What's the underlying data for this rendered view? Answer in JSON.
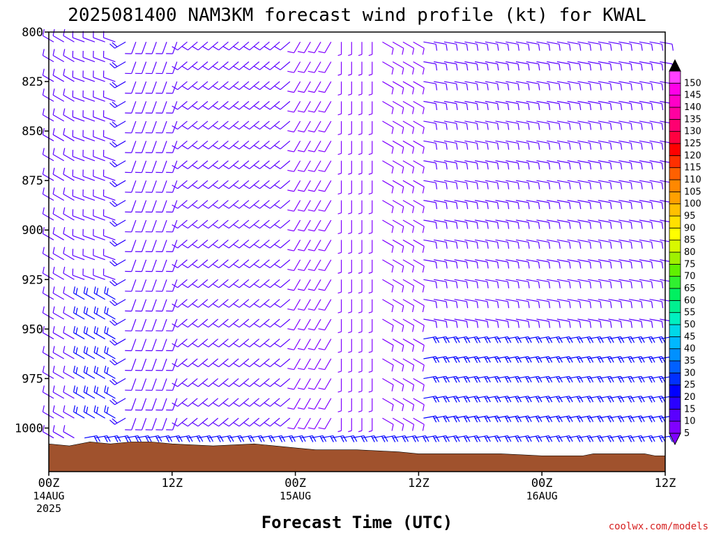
{
  "chart_data": {
    "type": "wind-barb time-height",
    "title": "2025081400 NAM3KM forecast wind profile (kt) for KWAL",
    "xlabel": "Forecast Time (UTC)",
    "ylabel": "",
    "credit": "coolwx.com/models",
    "x_ticks": [
      {
        "hours": 0,
        "lines": [
          "00Z",
          "14AUG",
          "2025"
        ]
      },
      {
        "hours": 12,
        "lines": [
          "12Z"
        ]
      },
      {
        "hours": 24,
        "lines": [
          "00Z",
          "15AUG"
        ]
      },
      {
        "hours": 36,
        "lines": [
          "12Z"
        ]
      },
      {
        "hours": 48,
        "lines": [
          "00Z",
          "16AUG"
        ]
      },
      {
        "hours": 60,
        "lines": [
          "12Z"
        ]
      }
    ],
    "y_ticks": [
      800,
      825,
      850,
      875,
      900,
      925,
      950,
      975,
      1000
    ],
    "xlim_hours": [
      0,
      60
    ],
    "ylim_mb": [
      800,
      1022
    ],
    "grid": false,
    "colorbar": {
      "values": [
        5,
        10,
        15,
        20,
        25,
        30,
        35,
        40,
        45,
        50,
        55,
        60,
        65,
        70,
        75,
        80,
        85,
        90,
        95,
        100,
        105,
        110,
        115,
        120,
        125,
        130,
        135,
        140,
        145,
        150
      ],
      "colors": [
        "#8000ff",
        "#5a00ff",
        "#2a00ff",
        "#0000ff",
        "#0030ff",
        "#0060ff",
        "#0090ff",
        "#00b8ff",
        "#00d8e8",
        "#00f0c0",
        "#00f090",
        "#00f060",
        "#30f030",
        "#60f000",
        "#a0f000",
        "#d8f800",
        "#ffff00",
        "#ffe000",
        "#ffc000",
        "#ffa000",
        "#ff8800",
        "#ff6000",
        "#ff3000",
        "#ff0000",
        "#ff0040",
        "#ff0070",
        "#ff00a0",
        "#ff00c8",
        "#ff00e8",
        "#ff40ff"
      ]
    },
    "wind_barbs": {
      "time_step_hours": 1,
      "levels_mb": [
        805,
        815,
        825,
        835,
        845,
        855,
        865,
        875,
        885,
        895,
        905,
        915,
        925,
        935,
        945,
        955,
        965,
        975,
        985,
        995,
        1005
      ],
      "segments": [
        {
          "hours": [
            0,
            3
          ],
          "mb": [
            800,
            1010
          ],
          "dir": 300,
          "speed": 12
        },
        {
          "hours": [
            3,
            7
          ],
          "mb": [
            800,
            935
          ],
          "dir": 290,
          "speed": 12
        },
        {
          "hours": [
            3,
            7
          ],
          "mb": [
            935,
            1005
          ],
          "dir": 300,
          "speed": 20
        },
        {
          "hours": [
            7,
            8
          ],
          "mb": [
            800,
            1005
          ],
          "dir": 240,
          "speed": 18
        },
        {
          "hours": [
            8,
            13
          ],
          "mb": [
            800,
            1005
          ],
          "dir": 200,
          "speed": 12
        },
        {
          "hours": [
            13,
            24
          ],
          "mb": [
            800,
            1005
          ],
          "dir": 230,
          "speed": 10
        },
        {
          "hours": [
            24,
            28
          ],
          "mb": [
            800,
            1005
          ],
          "dir": 210,
          "speed": 8
        },
        {
          "hours": [
            28,
            32
          ],
          "mb": [
            800,
            1005
          ],
          "dir": 180,
          "speed": 5
        },
        {
          "hours": [
            32,
            36
          ],
          "mb": [
            800,
            1005
          ],
          "dir": 120,
          "speed": 8
        },
        {
          "hours": [
            36,
            60
          ],
          "mb": [
            800,
            955
          ],
          "dir": 100,
          "speed": 12
        },
        {
          "hours": [
            36,
            60
          ],
          "mb": [
            955,
            1005
          ],
          "dir": 80,
          "speed": 20
        }
      ]
    },
    "terrain": {
      "color": "#a0522d",
      "surface_pressure_mb": [
        [
          0,
          1008
        ],
        [
          2,
          1009
        ],
        [
          4,
          1007
        ],
        [
          6,
          1008
        ],
        [
          8,
          1007
        ],
        [
          10,
          1007
        ],
        [
          12,
          1008
        ],
        [
          16,
          1009
        ],
        [
          20,
          1008
        ],
        [
          22,
          1009
        ],
        [
          24,
          1010
        ],
        [
          26,
          1011
        ],
        [
          30,
          1011
        ],
        [
          34,
          1012
        ],
        [
          36,
          1013
        ],
        [
          40,
          1013
        ],
        [
          44,
          1013
        ],
        [
          48,
          1014
        ],
        [
          52,
          1014
        ],
        [
          53,
          1013
        ],
        [
          58,
          1013
        ],
        [
          59,
          1014
        ],
        [
          60,
          1014
        ]
      ]
    }
  }
}
